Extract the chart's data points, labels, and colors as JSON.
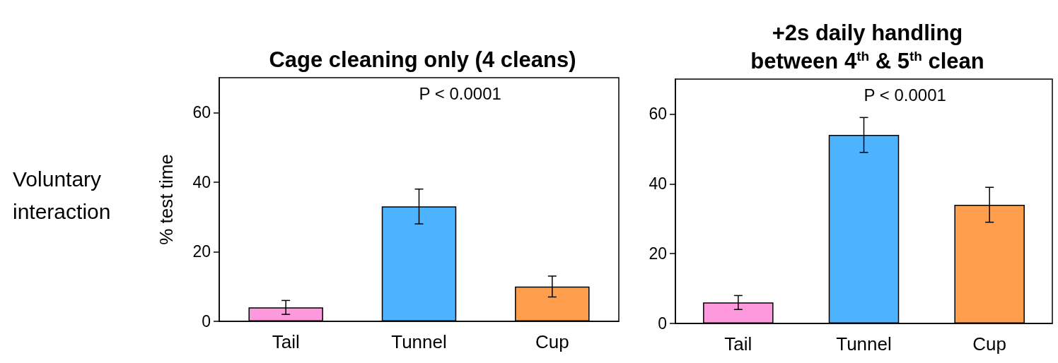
{
  "chart_data": [
    {
      "type": "bar",
      "title": "Cage cleaning only (4 cleans)",
      "ylabel": "% test time",
      "annotations": [
        "P < 0.0001",
        "Voluntary interaction"
      ],
      "categories": [
        "Tail",
        "Tunnel",
        "Cup"
      ],
      "values": [
        4,
        33,
        10
      ],
      "errors": [
        2,
        5,
        3
      ],
      "colors": [
        "#ff99dd",
        "#4db3ff",
        "#ff9e4d"
      ],
      "ylim": [
        0,
        70
      ],
      "yticks": [
        0,
        20,
        40,
        60
      ],
      "grid": false
    },
    {
      "type": "bar",
      "title": "+2s daily handling\nbetween 4$^{th}$ & 5$^{th}$ clean",
      "annotations": [
        "P < 0.0001"
      ],
      "categories": [
        "Tail",
        "Tunnel",
        "Cup"
      ],
      "values": [
        6,
        54,
        34
      ],
      "errors": [
        2,
        5,
        5
      ],
      "colors": [
        "#ff99dd",
        "#4db3ff",
        "#ff9e4d"
      ],
      "ylim": [
        0,
        70
      ],
      "yticks": [
        0,
        20,
        40,
        60
      ],
      "grid": false
    }
  ]
}
